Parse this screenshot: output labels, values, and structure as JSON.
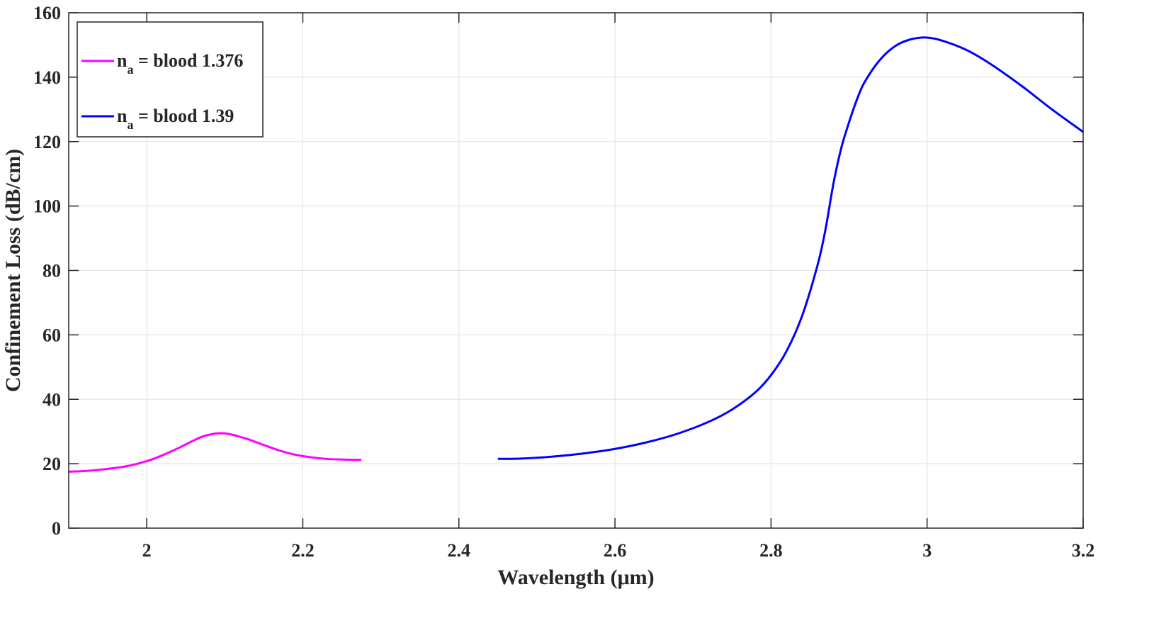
{
  "chart_data": {
    "type": "line",
    "xlabel": "Wavelength (μm)",
    "ylabel": "Confinement Loss (dB/cm)",
    "xlim": [
      1.9,
      3.2
    ],
    "ylim": [
      0,
      160
    ],
    "xticks": [
      2,
      2.2,
      2.4,
      2.6,
      2.8,
      3,
      3.2
    ],
    "xtick_labels": [
      "2",
      "2.2",
      "2.4",
      "2.6",
      "2.8",
      "3",
      "3.2"
    ],
    "yticks": [
      0,
      20,
      40,
      60,
      80,
      100,
      120,
      140,
      160
    ],
    "ytick_labels": [
      "0",
      "20",
      "40",
      "60",
      "80",
      "100",
      "120",
      "140",
      "160"
    ],
    "grid": true,
    "legend_position": "top-left",
    "series": [
      {
        "name": "n_a = blood 1.376",
        "legend_main": "n",
        "legend_sub": "a",
        "legend_rest": " = blood 1.376",
        "color": "#ff00ff",
        "x": [
          1.9,
          1.93,
          1.96,
          1.98,
          2.0,
          2.02,
          2.04,
          2.06,
          2.07,
          2.08,
          2.09,
          2.1,
          2.11,
          2.12,
          2.13,
          2.15,
          2.17,
          2.19,
          2.21,
          2.23,
          2.25,
          2.275
        ],
        "y": [
          17.5,
          17.9,
          18.7,
          19.5,
          20.8,
          22.6,
          24.8,
          27.2,
          28.3,
          29.0,
          29.4,
          29.4,
          29.0,
          28.3,
          27.6,
          25.8,
          24.1,
          22.8,
          22.0,
          21.5,
          21.3,
          21.2
        ]
      },
      {
        "name": "n_a = blood 1.39",
        "legend_main": "n",
        "legend_sub": "a",
        "legend_rest": " = blood 1.39",
        "color": "#0000ff",
        "x": [
          2.45,
          2.48,
          2.52,
          2.56,
          2.6,
          2.64,
          2.68,
          2.72,
          2.75,
          2.78,
          2.8,
          2.82,
          2.84,
          2.86,
          2.87,
          2.88,
          2.89,
          2.9,
          2.91,
          2.92,
          2.94,
          2.96,
          2.98,
          3.0,
          3.02,
          3.05,
          3.08,
          3.12,
          3.16,
          3.2
        ],
        "y": [
          21.5,
          21.6,
          22.2,
          23.2,
          24.6,
          26.6,
          29.3,
          33.0,
          36.8,
          42.2,
          47.5,
          55.0,
          66.0,
          82.0,
          93.0,
          107.0,
          118.0,
          126.0,
          133.0,
          138.5,
          145.5,
          149.8,
          151.8,
          152.3,
          151.3,
          148.5,
          144.3,
          137.5,
          130.0,
          123.0
        ]
      }
    ]
  }
}
